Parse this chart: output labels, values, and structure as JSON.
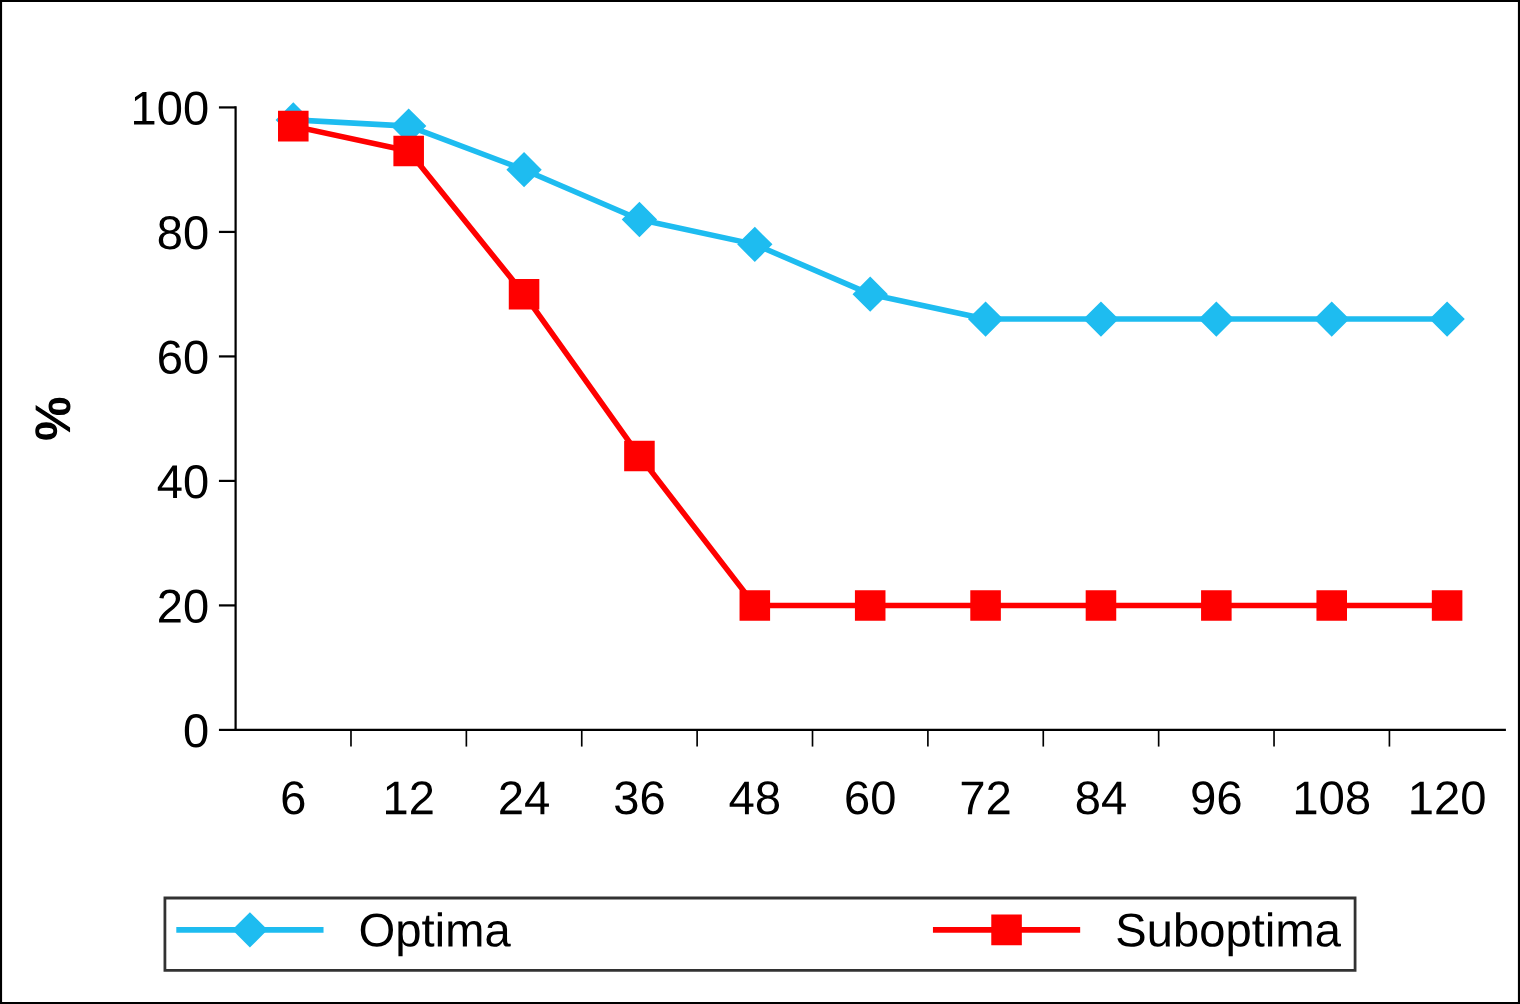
{
  "chart_data": {
    "type": "line",
    "ylabel": "%",
    "categories": [
      "6",
      "12",
      "24",
      "36",
      "48",
      "60",
      "72",
      "84",
      "96",
      "108",
      "120"
    ],
    "series": [
      {
        "name": "Optima",
        "color": "#1ebcf0",
        "marker": "diamond",
        "values": [
          98,
          97,
          90,
          82,
          78,
          70,
          66,
          66,
          66,
          66,
          66
        ]
      },
      {
        "name": "Suboptima",
        "color": "#ff0000",
        "marker": "square",
        "values": [
          97,
          93,
          70,
          44,
          20,
          20,
          20,
          20,
          20,
          20,
          20
        ]
      }
    ],
    "ylim": [
      0,
      100
    ],
    "yticks": [
      0,
      20,
      40,
      60,
      80,
      100
    ],
    "grid": false,
    "legend": "bottom"
  }
}
